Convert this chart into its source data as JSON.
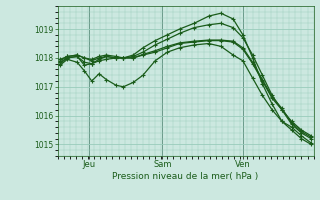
{
  "bg_color": "#cce8e0",
  "grid_color": "#99ccbb",
  "line_color": "#1a5c1a",
  "vline_color": "#6a9a8a",
  "xlabel": "Pression niveau de la mer( hPa )",
  "yticks": [
    1015,
    1016,
    1017,
    1018,
    1019
  ],
  "ylim": [
    1014.6,
    1019.8
  ],
  "xtick_labels": [
    "Jeu",
    "Sam",
    "Ven"
  ],
  "xtick_positions": [
    0.13,
    0.43,
    0.76
  ],
  "xlim": [
    0.0,
    1.05
  ],
  "series": [
    {
      "x": [
        0.01,
        0.04,
        0.08,
        0.11,
        0.14,
        0.17,
        0.2,
        0.24,
        0.27,
        0.31,
        0.35,
        0.4,
        0.45,
        0.5,
        0.56,
        0.62,
        0.67,
        0.72,
        0.76,
        0.8,
        0.84,
        0.88,
        0.92,
        0.96,
        1.0,
        1.04
      ],
      "y": [
        1017.75,
        1017.95,
        1017.85,
        1017.55,
        1017.2,
        1017.45,
        1017.25,
        1017.05,
        1017.0,
        1017.15,
        1017.4,
        1017.9,
        1018.2,
        1018.35,
        1018.45,
        1018.5,
        1018.4,
        1018.1,
        1017.9,
        1017.3,
        1016.7,
        1016.2,
        1015.8,
        1015.5,
        1015.2,
        1015.0
      ]
    },
    {
      "x": [
        0.01,
        0.04,
        0.08,
        0.11,
        0.14,
        0.17,
        0.2,
        0.24,
        0.27,
        0.31,
        0.35,
        0.4,
        0.45,
        0.5,
        0.56,
        0.62,
        0.67,
        0.72,
        0.76,
        0.8,
        0.84,
        0.88,
        0.92,
        0.96,
        1.0,
        1.04
      ],
      "y": [
        1017.85,
        1018.0,
        1018.05,
        1017.75,
        1017.8,
        1017.95,
        1018.05,
        1018.0,
        1018.0,
        1018.1,
        1018.35,
        1018.6,
        1018.8,
        1019.0,
        1019.2,
        1019.45,
        1019.55,
        1019.35,
        1018.8,
        1018.0,
        1017.1,
        1016.4,
        1015.8,
        1015.6,
        1015.3,
        1015.05
      ]
    },
    {
      "x": [
        0.01,
        0.04,
        0.08,
        0.11,
        0.14,
        0.17,
        0.2,
        0.24,
        0.27,
        0.31,
        0.35,
        0.4,
        0.45,
        0.5,
        0.56,
        0.62,
        0.67,
        0.72,
        0.76,
        0.8,
        0.84,
        0.88,
        0.92,
        0.96,
        1.0,
        1.04
      ],
      "y": [
        1017.8,
        1018.0,
        1018.05,
        1017.85,
        1017.8,
        1017.9,
        1017.95,
        1018.0,
        1018.0,
        1018.05,
        1018.2,
        1018.45,
        1018.65,
        1018.85,
        1019.05,
        1019.15,
        1019.2,
        1019.05,
        1018.7,
        1018.1,
        1017.4,
        1016.7,
        1016.2,
        1015.8,
        1015.5,
        1015.3
      ]
    },
    {
      "x": [
        0.01,
        0.04,
        0.08,
        0.11,
        0.14,
        0.17,
        0.2,
        0.24,
        0.27,
        0.31,
        0.35,
        0.4,
        0.45,
        0.5,
        0.56,
        0.62,
        0.67,
        0.72,
        0.76,
        0.8,
        0.84,
        0.88,
        0.92,
        0.96,
        1.0,
        1.04
      ],
      "y": [
        1017.95,
        1018.05,
        1018.1,
        1018.0,
        1017.95,
        1018.05,
        1018.1,
        1018.05,
        1018.0,
        1018.0,
        1018.1,
        1018.2,
        1018.35,
        1018.5,
        1018.55,
        1018.6,
        1018.6,
        1018.55,
        1018.3,
        1017.8,
        1017.2,
        1016.6,
        1016.2,
        1015.7,
        1015.4,
        1015.2
      ]
    },
    {
      "x": [
        0.01,
        0.04,
        0.08,
        0.11,
        0.14,
        0.17,
        0.2,
        0.24,
        0.27,
        0.31,
        0.35,
        0.4,
        0.45,
        0.5,
        0.56,
        0.62,
        0.67,
        0.72,
        0.76,
        0.8,
        0.84,
        0.88,
        0.92,
        0.96,
        1.0,
        1.04
      ],
      "y": [
        1017.9,
        1018.05,
        1018.1,
        1018.0,
        1017.9,
        1018.0,
        1018.05,
        1018.0,
        1018.0,
        1018.0,
        1018.12,
        1018.25,
        1018.4,
        1018.52,
        1018.58,
        1018.62,
        1018.62,
        1018.58,
        1018.35,
        1017.85,
        1017.25,
        1016.65,
        1016.25,
        1015.75,
        1015.45,
        1015.25
      ]
    }
  ]
}
